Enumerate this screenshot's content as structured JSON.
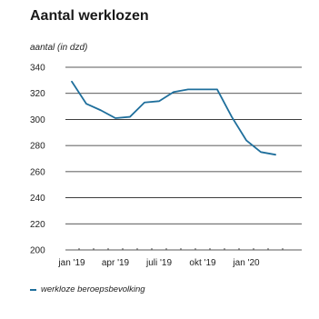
{
  "colors": {
    "series": "#1f6f9c",
    "grid": "#222222",
    "tick_text": "#222222"
  },
  "chart_data": {
    "type": "line",
    "title": "Aantal werklozen",
    "ylabel": "aantal (in dzd)",
    "xlabel": "",
    "ylim": [
      200,
      340
    ],
    "yticks": [
      200,
      220,
      240,
      260,
      280,
      300,
      320,
      340
    ],
    "xticks": [
      "jan '19",
      "apr '19",
      "juli '19",
      "okt '19",
      "jan '20"
    ],
    "grid": true,
    "legend_position": "bottom-left",
    "x": [
      "2019-01",
      "2019-02",
      "2019-03",
      "2019-04",
      "2019-05",
      "2019-06",
      "2019-07",
      "2019-08",
      "2019-09",
      "2019-10",
      "2019-11",
      "2019-12",
      "2020-01",
      "2020-02",
      "2020-03"
    ],
    "series": [
      {
        "name": "werkloze beroepsbevolking",
        "values": [
          329,
          312,
          307,
          301,
          302,
          313,
          314,
          321,
          323,
          323,
          323,
          302,
          284,
          275,
          273
        ]
      }
    ]
  }
}
